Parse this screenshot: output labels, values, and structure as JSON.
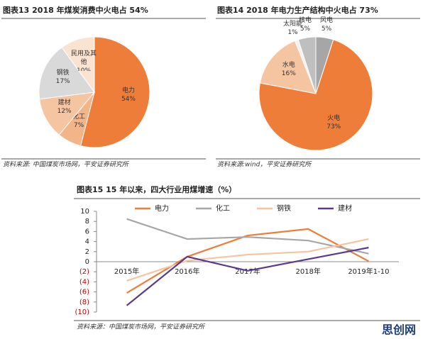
{
  "chart_data": [
    {
      "type": "pie",
      "title": "图表13 2018 年煤炭消费中火电占 54%",
      "categories": [
        "电力",
        "化工",
        "建材",
        "钢铁",
        "民用及其他"
      ],
      "values": [
        54,
        7,
        12,
        17,
        10
      ],
      "value_labels": [
        "54%",
        "7%",
        "12%",
        "17%",
        "10%"
      ],
      "colors": [
        "#ee7d3a",
        "#f3b48a",
        "#f5c5a2",
        "#d9d9d9",
        "#fbe3d2"
      ],
      "source": "资料来源: 中国煤炭市场网，平安证券研究所"
    },
    {
      "type": "pie",
      "title": "图表14 2018 年电力生产结构中火电占 73%",
      "categories": [
        "风电",
        "火电",
        "水电",
        "太阳能",
        "核电"
      ],
      "values": [
        5,
        73,
        16,
        1,
        5
      ],
      "value_labels": [
        "5%",
        "73%",
        "16%",
        "1%",
        "5%"
      ],
      "colors": [
        "#a6a6a6",
        "#ee7d3a",
        "#f5c5a2",
        "#f2f2f2",
        "#bfbfbf"
      ],
      "source": "资料来源:wind，平安证券研究所"
    },
    {
      "type": "line",
      "title": "图表15 15 年以来，四大行业用煤增速（%）",
      "categories": [
        "2015年",
        "2016年",
        "2017年",
        "2018年",
        "2019年1-10"
      ],
      "series": [
        {
          "name": "电力",
          "color": "#ee7d3a",
          "values": [
            -6.2,
            1.0,
            5.2,
            6.5,
            0.1
          ]
        },
        {
          "name": "化工",
          "color": "#a6a6a6",
          "values": [
            8.5,
            4.5,
            4.9,
            4.2,
            1.6
          ]
        },
        {
          "name": "钢铁",
          "color": "#f7c3a0",
          "values": [
            -3.8,
            0.2,
            1.4,
            2.0,
            4.5
          ]
        },
        {
          "name": "建材",
          "color": "#5b3a8c",
          "values": [
            -8.7,
            1.0,
            -1.8,
            0.5,
            2.8
          ]
        }
      ],
      "ylim": [
        -10,
        10
      ],
      "yticks": [
        {
          "value": -10,
          "label": "(10)"
        },
        {
          "value": -8,
          "label": "(8)"
        },
        {
          "value": -6,
          "label": "(6)"
        },
        {
          "value": -4,
          "label": "(4)"
        },
        {
          "value": -2,
          "label": "(2)"
        },
        0,
        2,
        4,
        6,
        8,
        10
      ],
      "source": "资料来源：中国煤炭市场网，平安证券研究所",
      "watermark": "思创网"
    }
  ]
}
